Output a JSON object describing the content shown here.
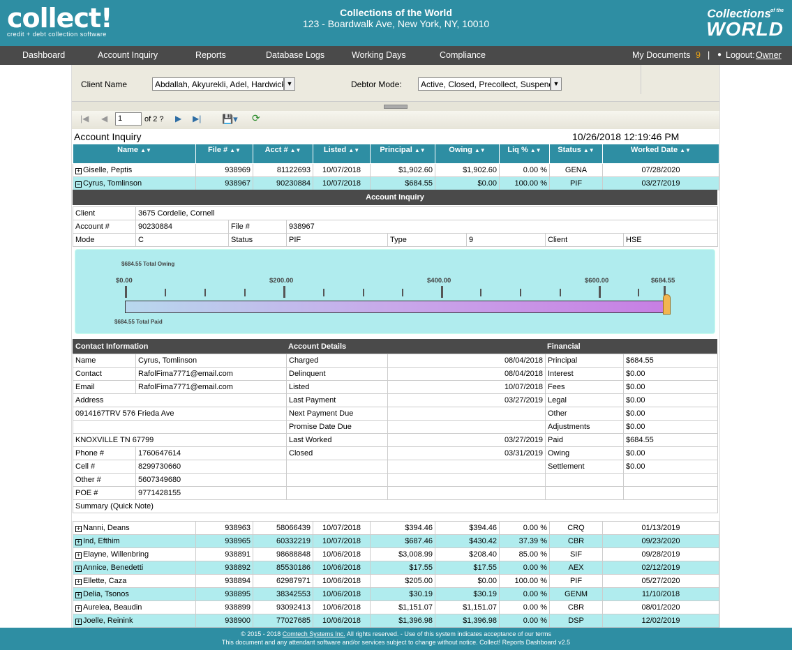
{
  "header": {
    "logo": "collect!",
    "logo_tagline": "credit + debt collection software",
    "company_name": "Collections of the World",
    "company_address": "123 - Boardwalk Ave, New York, NY, 10010",
    "brand_line1": "Collections",
    "brand_line2": "WORLD",
    "brand_small": "of the"
  },
  "nav": {
    "items": [
      "Dashboard",
      "Account Inquiry",
      "Reports",
      "Database Logs",
      "Working Days",
      "Compliance"
    ],
    "my_documents": "My Documents",
    "doc_count": "9",
    "separator": "|",
    "logout_label": "Logout:",
    "user": "Owner"
  },
  "filters": {
    "client_label": "Client Name",
    "client_value": "Abdallah, Akyurekli, Adel, Hardwick",
    "debtor_label": "Debtor Mode:",
    "debtor_value": "Active, Closed, Precollect, Suspended"
  },
  "toolbar": {
    "page_value": "1",
    "page_of": "of 2 ?",
    "first_icon": "first-page-icon",
    "prev_icon": "prev-page-icon",
    "next_icon": "next-page-icon",
    "last_icon": "last-page-icon",
    "export_icon": "save-export-icon",
    "refresh_icon": "refresh-icon"
  },
  "report": {
    "title": "Account Inquiry",
    "datetime": "10/26/2018 12:19:46 PM"
  },
  "columns": [
    "Name",
    "File #",
    "Acct #",
    "Listed",
    "Principal",
    "Owing",
    "Liq %",
    "Status",
    "Worked Date"
  ],
  "top_rows": [
    {
      "expander": "+",
      "name": "Giselle, Peptis",
      "file": "938969",
      "acct": "81122693",
      "listed": "10/07/2018",
      "principal": "$1,902.60",
      "owing": "$1,902.60",
      "liq": "0.00 %",
      "status": "GENA",
      "worked": "07/28/2020"
    },
    {
      "expander": "−",
      "name": "Cyrus, Tomlinson",
      "file": "938967",
      "acct": "90230884",
      "listed": "10/07/2018",
      "principal": "$684.55",
      "owing": "$0.00",
      "liq": "100.00 %",
      "status": "PIF",
      "worked": "03/27/2019"
    }
  ],
  "detail": {
    "title": "Account Inquiry",
    "client_label": "Client",
    "client_value": "3675 Cordelie, Cornell",
    "account_label": "Account #",
    "account_value": "90230884",
    "file_label": "File #",
    "file_value": "938967",
    "mode_label": "Mode",
    "mode_value": "C",
    "status_label": "Status",
    "status_value": "PIF",
    "type_label": "Type",
    "type_value": "9",
    "client2_label": "Client",
    "client2_value": "HSE",
    "gauge": {
      "total_owing": "$684.55 Total Owing",
      "total_paid": "$684.55 Total Paid",
      "scale": [
        "$0.00",
        "$200.00",
        "$400.00",
        "$600.00",
        "$684.55"
      ],
      "paid_fraction": 1.0
    },
    "contact_header": "Contact Information",
    "account_header": "Account Details",
    "financial_header": "Financial",
    "contact": {
      "name_label": "Name",
      "name": "Cyrus, Tomlinson",
      "contact_label": "Contact",
      "contact": "RafolFima7771@email.com",
      "email_label": "Email",
      "email": "RafolFima7771@email.com",
      "address_label": "Address",
      "address1": "0914167TRV 576 Frieda Ave",
      "city": "KNOXVILLE TN 67799",
      "phone_label": "Phone #",
      "phone": "1760647614",
      "cell_label": "Cell #",
      "cell": "8299730660",
      "other_label": "Other #",
      "other": "5607349680",
      "poe_label": "POE #",
      "poe": "9771428155",
      "summary_label": "Summary (Quick Note)"
    },
    "account_details": [
      {
        "label": "Charged",
        "value": "08/04/2018"
      },
      {
        "label": "Delinquent",
        "value": "08/04/2018"
      },
      {
        "label": "Listed",
        "value": "10/07/2018"
      },
      {
        "label": "Last Payment",
        "value": "03/27/2019"
      },
      {
        "label": "Next Payment Due",
        "value": ""
      },
      {
        "label": "Promise Date Due",
        "value": ""
      },
      {
        "label": "Last Worked",
        "value": "03/27/2019"
      },
      {
        "label": "Closed",
        "value": "03/31/2019"
      }
    ],
    "financial": [
      {
        "label": "Principal",
        "value": "$684.55"
      },
      {
        "label": "Interest",
        "value": "$0.00"
      },
      {
        "label": "Fees",
        "value": "$0.00"
      },
      {
        "label": "Legal",
        "value": "$0.00"
      },
      {
        "label": "Other",
        "value": "$0.00"
      },
      {
        "label": "Adjustments",
        "value": "$0.00"
      },
      {
        "label": "Paid",
        "value": "$684.55"
      },
      {
        "label": "Owing",
        "value": "$0.00"
      },
      {
        "label": "Settlement",
        "value": "$0.00"
      }
    ]
  },
  "bottom_rows": [
    {
      "expander": "+",
      "name": "Nanni, Deans",
      "file": "938963",
      "acct": "58066439",
      "listed": "10/07/2018",
      "principal": "$394.46",
      "owing": "$394.46",
      "liq": "0.00 %",
      "status": "CRQ",
      "worked": "01/13/2019"
    },
    {
      "expander": "+",
      "name": "Ind, Efthim",
      "file": "938965",
      "acct": "60332219",
      "listed": "10/07/2018",
      "principal": "$687.46",
      "owing": "$430.42",
      "liq": "37.39 %",
      "status": "CBR",
      "worked": "09/23/2020"
    },
    {
      "expander": "+",
      "name": "Elayne, Willenbring",
      "file": "938891",
      "acct": "98688848",
      "listed": "10/06/2018",
      "principal": "$3,008.99",
      "owing": "$208.40",
      "liq": "85.00 %",
      "status": "SIF",
      "worked": "09/28/2019"
    },
    {
      "expander": "+",
      "name": "Annice, Benedetti",
      "file": "938892",
      "acct": "85530186",
      "listed": "10/06/2018",
      "principal": "$17.55",
      "owing": "$17.55",
      "liq": "0.00 %",
      "status": "AEX",
      "worked": "02/12/2019"
    },
    {
      "expander": "+",
      "name": "Ellette, Caza",
      "file": "938894",
      "acct": "62987971",
      "listed": "10/06/2018",
      "principal": "$205.00",
      "owing": "$0.00",
      "liq": "100.00 %",
      "status": "PIF",
      "worked": "05/27/2020"
    },
    {
      "expander": "+",
      "name": "Delia, Tsonos",
      "file": "938895",
      "acct": "38342553",
      "listed": "10/06/2018",
      "principal": "$30.19",
      "owing": "$30.19",
      "liq": "0.00 %",
      "status": "GENM",
      "worked": "11/10/2018"
    },
    {
      "expander": "+",
      "name": "Aurelea, Beaudin",
      "file": "938899",
      "acct": "93092413",
      "listed": "10/06/2018",
      "principal": "$1,151.07",
      "owing": "$1,151.07",
      "liq": "0.00 %",
      "status": "CBR",
      "worked": "08/01/2020"
    },
    {
      "expander": "+",
      "name": "Joelle, Reinink",
      "file": "938900",
      "acct": "77027685",
      "listed": "10/06/2018",
      "principal": "$1,396.98",
      "owing": "$1,396.98",
      "liq": "0.00 %",
      "status": "DSP",
      "worked": "12/02/2019"
    }
  ],
  "footer": {
    "line1_pre": "© 2015 - 2018",
    "company_link": "Comtech Systems Inc.",
    "line1_post": "All rights reserved. - Use of this system indicates acceptance of our terms",
    "line2": "This document and any attendant software and/or services subject to change without notice. Collect! Reports Dashboard v2.5"
  },
  "colors": {
    "teal": "#2e8ea3",
    "nav": "#4a4a4a",
    "row_alt": "#b0ecee",
    "accent": "#e8a317"
  }
}
